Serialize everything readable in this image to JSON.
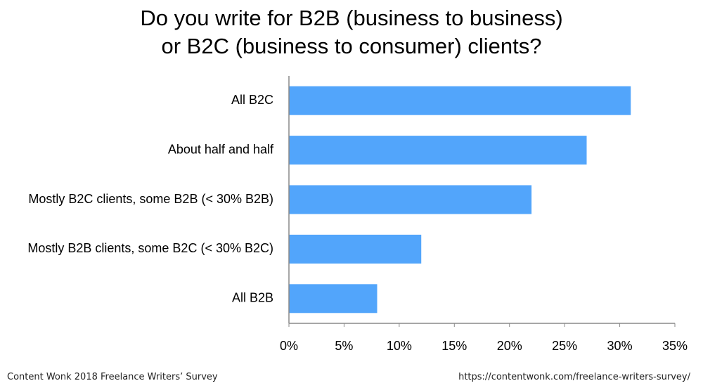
{
  "chart_data": {
    "type": "bar",
    "orientation": "horizontal",
    "title_lines": [
      "Do you write for B2B (business to business)",
      "or B2C (business to consumer) clients?"
    ],
    "categories": [
      "All B2C",
      "About half and half",
      "Mostly B2C clients, some B2B (< 30% B2B)",
      "Mostly B2B clients, some B2C (< 30% B2C)",
      "All B2B"
    ],
    "values": [
      31,
      27,
      22,
      12,
      8
    ],
    "xlim": [
      0,
      35
    ],
    "x_ticks": [
      0,
      5,
      10,
      15,
      20,
      25,
      30,
      35
    ],
    "tick_suffix": "%",
    "bar_color": "#52A5FB",
    "grid": false,
    "legend": "none"
  },
  "footer": {
    "source": "Content Wonk 2018 Freelance Writers’ Survey",
    "url": "https://contentwonk.com/freelance-writers-survey/"
  }
}
